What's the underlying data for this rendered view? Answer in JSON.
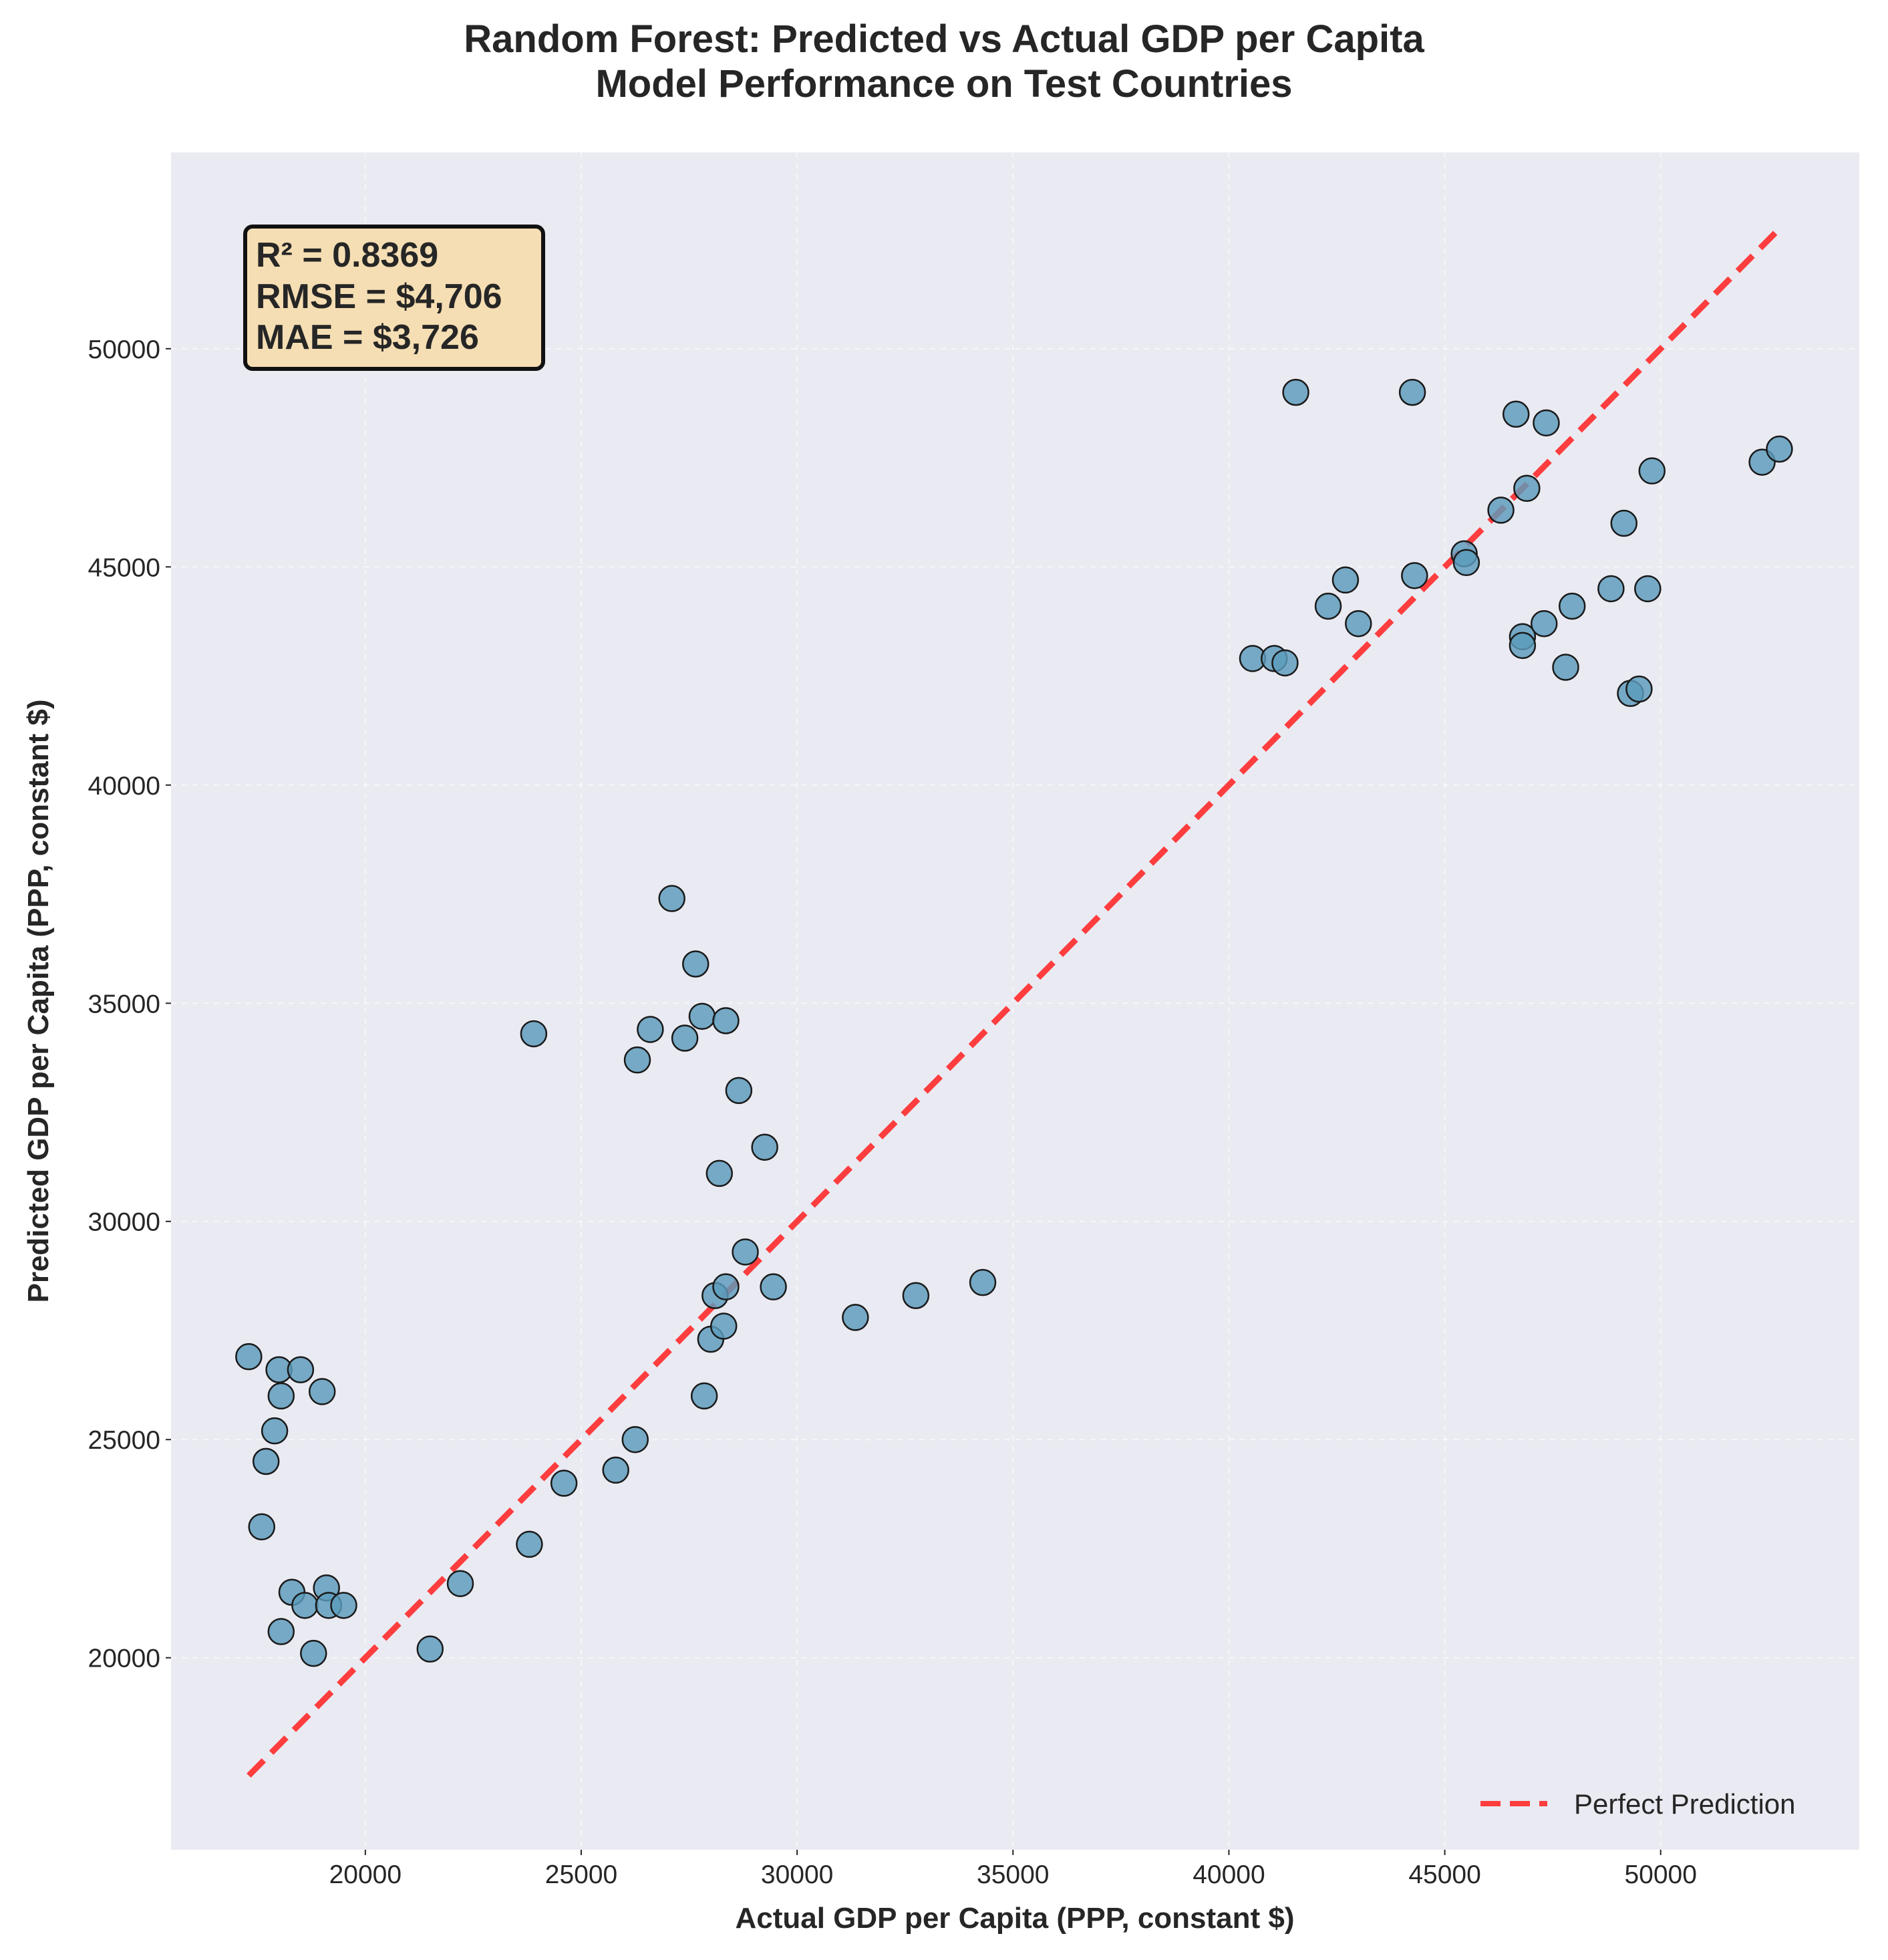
{
  "chart_data": {
    "type": "scatter",
    "title": [
      "Random Forest: Predicted vs Actual GDP per Capita",
      "Model Performance on Test Countries"
    ],
    "xlabel": "Actual GDP per Capita (PPP, constant $)",
    "ylabel": "Predicted GDP per Capita (PPP, constant $)",
    "xlim": [
      15500,
      54600
    ],
    "ylim": [
      15600,
      54500
    ],
    "xticks": [
      20000,
      25000,
      30000,
      35000,
      40000,
      45000,
      50000
    ],
    "yticks": [
      20000,
      25000,
      30000,
      35000,
      40000,
      45000,
      50000
    ],
    "grid": true,
    "stats": [
      "R² = 0.8369",
      "RMSE = $4,706",
      "MAE = $3,726"
    ],
    "legend": {
      "position": "bottom-right",
      "entries": [
        "Perfect Prediction"
      ]
    },
    "reference_line": {
      "name": "Perfect Prediction",
      "x": [
        17300,
        52800
      ],
      "y": [
        17300,
        52800
      ],
      "color": "#ff2a2a",
      "style": "dashed"
    },
    "colors": {
      "plot_bg": "#eaeaf2",
      "point_fill": "#5b9bbb",
      "point_edge": "#1a1a1a",
      "stats_box_bg": "#f5deb3"
    },
    "points": [
      {
        "x": 17300,
        "y": 26900
      },
      {
        "x": 17600,
        "y": 23000
      },
      {
        "x": 17700,
        "y": 24500
      },
      {
        "x": 17900,
        "y": 25200
      },
      {
        "x": 18000,
        "y": 26600
      },
      {
        "x": 18050,
        "y": 26000
      },
      {
        "x": 18050,
        "y": 20600
      },
      {
        "x": 18300,
        "y": 21500
      },
      {
        "x": 18500,
        "y": 26600
      },
      {
        "x": 18600,
        "y": 21200
      },
      {
        "x": 18800,
        "y": 20100
      },
      {
        "x": 19000,
        "y": 26100
      },
      {
        "x": 19100,
        "y": 21600
      },
      {
        "x": 19150,
        "y": 21200
      },
      {
        "x": 19500,
        "y": 21200
      },
      {
        "x": 21500,
        "y": 20200
      },
      {
        "x": 22200,
        "y": 21700
      },
      {
        "x": 23800,
        "y": 22600
      },
      {
        "x": 23900,
        "y": 34300
      },
      {
        "x": 24600,
        "y": 24000
      },
      {
        "x": 25800,
        "y": 24300
      },
      {
        "x": 26250,
        "y": 25000
      },
      {
        "x": 26300,
        "y": 33700
      },
      {
        "x": 26600,
        "y": 34400
      },
      {
        "x": 27100,
        "y": 37400
      },
      {
        "x": 27400,
        "y": 34200
      },
      {
        "x": 27650,
        "y": 35900
      },
      {
        "x": 27800,
        "y": 34700
      },
      {
        "x": 27850,
        "y": 26000
      },
      {
        "x": 28000,
        "y": 27300
      },
      {
        "x": 28100,
        "y": 28300
      },
      {
        "x": 28200,
        "y": 31100
      },
      {
        "x": 28300,
        "y": 27600
      },
      {
        "x": 28350,
        "y": 34600
      },
      {
        "x": 28350,
        "y": 28500
      },
      {
        "x": 28650,
        "y": 33000
      },
      {
        "x": 28800,
        "y": 29300
      },
      {
        "x": 29250,
        "y": 31700
      },
      {
        "x": 29450,
        "y": 28500
      },
      {
        "x": 31350,
        "y": 27800
      },
      {
        "x": 32750,
        "y": 28300
      },
      {
        "x": 34300,
        "y": 28600
      },
      {
        "x": 40550,
        "y": 42900
      },
      {
        "x": 41050,
        "y": 42900
      },
      {
        "x": 41300,
        "y": 42800
      },
      {
        "x": 41550,
        "y": 49000
      },
      {
        "x": 42300,
        "y": 44100
      },
      {
        "x": 42700,
        "y": 44700
      },
      {
        "x": 43000,
        "y": 43700
      },
      {
        "x": 44250,
        "y": 49000
      },
      {
        "x": 44300,
        "y": 44800
      },
      {
        "x": 45450,
        "y": 45300
      },
      {
        "x": 45500,
        "y": 45100
      },
      {
        "x": 46300,
        "y": 46300
      },
      {
        "x": 46650,
        "y": 48500
      },
      {
        "x": 46800,
        "y": 43400
      },
      {
        "x": 46800,
        "y": 43200
      },
      {
        "x": 46900,
        "y": 46800
      },
      {
        "x": 47300,
        "y": 43700
      },
      {
        "x": 47350,
        "y": 48300
      },
      {
        "x": 47800,
        "y": 42700
      },
      {
        "x": 47950,
        "y": 44100
      },
      {
        "x": 48850,
        "y": 44500
      },
      {
        "x": 49150,
        "y": 46000
      },
      {
        "x": 49300,
        "y": 42100
      },
      {
        "x": 49500,
        "y": 42200
      },
      {
        "x": 49700,
        "y": 44500
      },
      {
        "x": 49800,
        "y": 47200
      },
      {
        "x": 52350,
        "y": 47400
      },
      {
        "x": 52750,
        "y": 47700
      }
    ]
  }
}
